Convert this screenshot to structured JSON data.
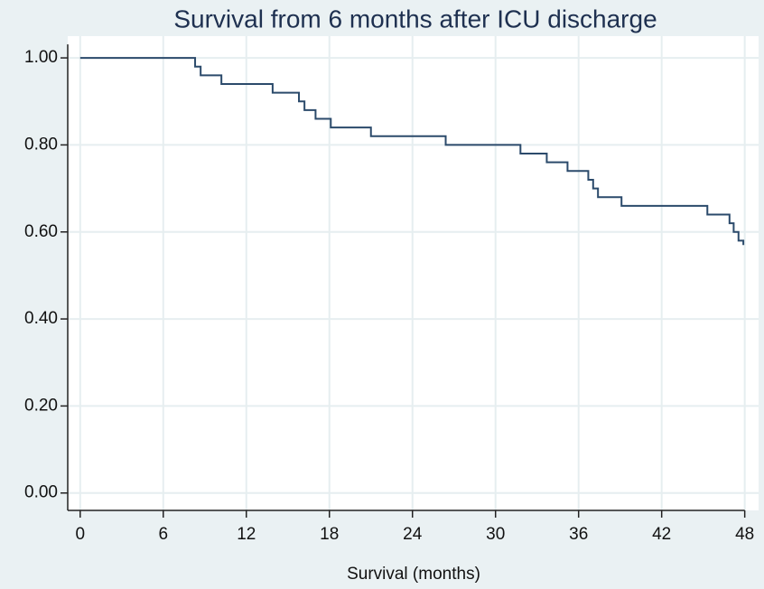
{
  "chart_data": {
    "type": "line",
    "step": "post",
    "title": "Survival from 6 months after ICU discharge",
    "x_label": "Survival (months)",
    "x": [
      0,
      8.3,
      8.7,
      10.2,
      13.9,
      15.8,
      16.2,
      17,
      18.1,
      21,
      26.4,
      31.8,
      33.7,
      35.2,
      36.7,
      37.05,
      37.4,
      39.1,
      45.3,
      46.9,
      47.2,
      47.55,
      47.9
    ],
    "values": [
      1,
      0.98,
      0.96,
      0.94,
      0.92,
      0.9,
      0.88,
      0.86,
      0.84,
      0.82,
      0.8,
      0.78,
      0.76,
      0.74,
      0.72,
      0.7,
      0.68,
      0.66,
      0.64,
      0.62,
      0.6,
      0.58,
      0.57
    ],
    "color": "#2b4a6b",
    "xlim": [
      -0.9,
      49
    ],
    "xticks": [
      0,
      6,
      12,
      18,
      24,
      30,
      36,
      42,
      48
    ],
    "ylim": [
      -0.04,
      1.05
    ],
    "yticks": [
      {
        "value": 0,
        "label": "0.00"
      },
      {
        "value": 0.2,
        "label": "0.20"
      },
      {
        "value": 0.4,
        "label": "0.40"
      },
      {
        "value": 0.6,
        "label": "0.60"
      },
      {
        "value": 0.8,
        "label": "0.80"
      },
      {
        "value": 1,
        "label": "1.00"
      }
    ],
    "grid": true
  }
}
